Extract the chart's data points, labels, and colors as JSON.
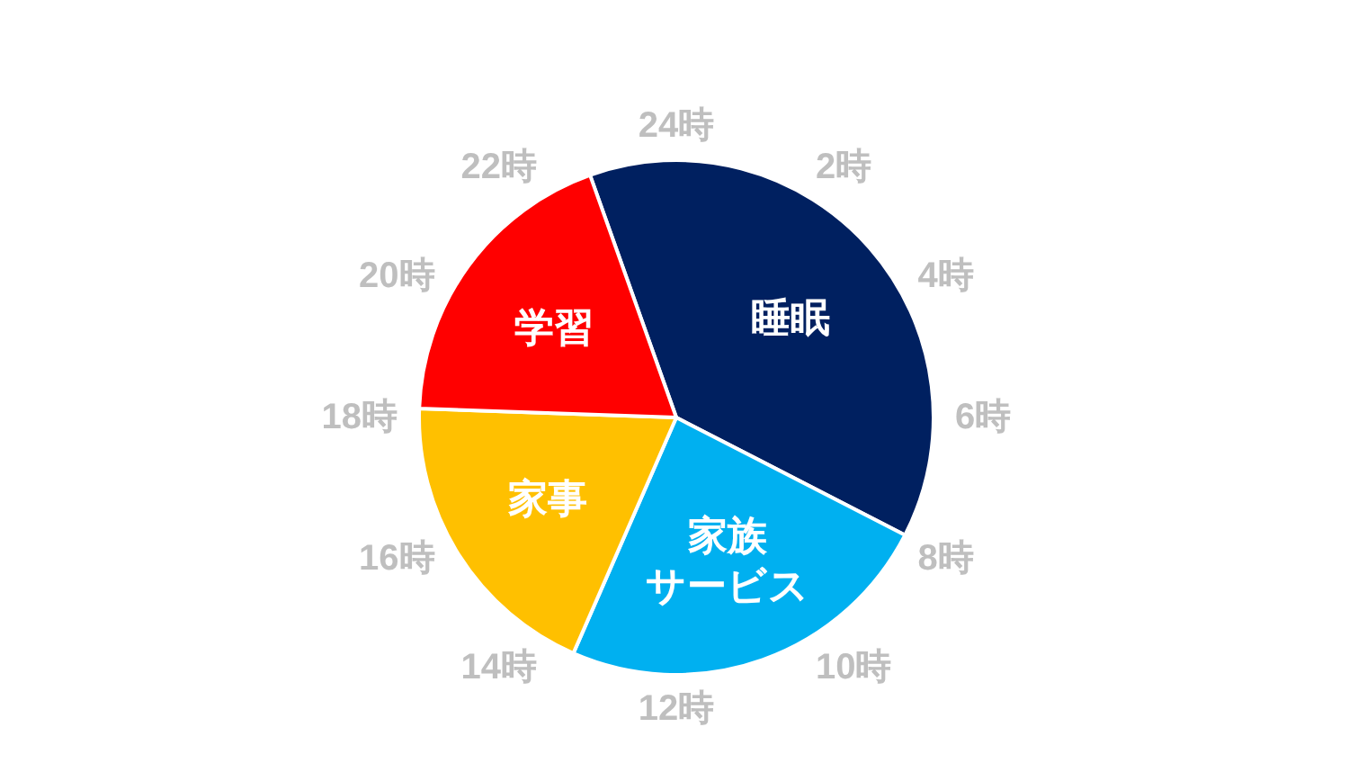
{
  "chart_data": {
    "type": "pie",
    "categories": [
      "睡眠",
      "家族サービス",
      "家事",
      "学習"
    ],
    "values": [
      38,
      24,
      19,
      19
    ],
    "colors": [
      "#002060",
      "#00b0f0",
      "#ffc000",
      "#ff0000"
    ],
    "annotations": [
      "24時",
      "2時",
      "4時",
      "6時",
      "8時",
      "10時",
      "12時",
      "14時",
      "16時",
      "18時",
      "20時",
      "22時"
    ]
  }
}
